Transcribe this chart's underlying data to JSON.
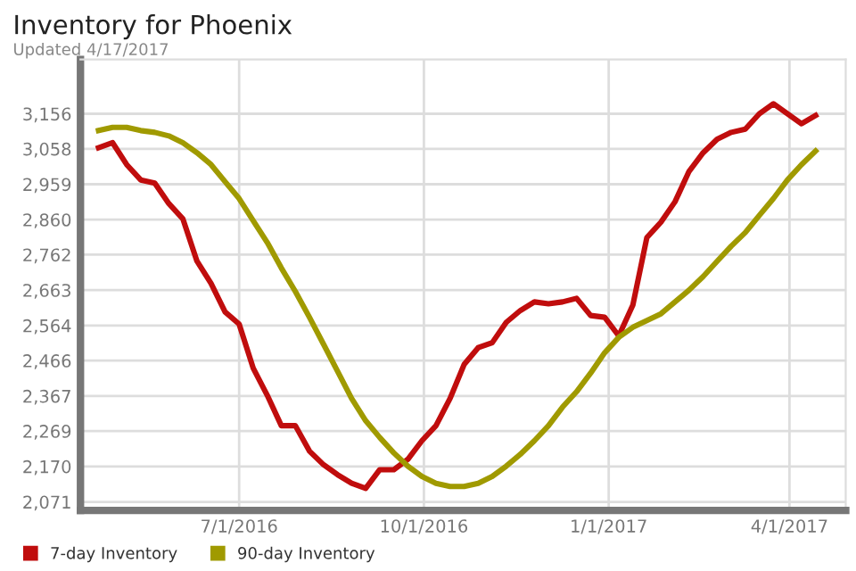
{
  "chart_data": {
    "type": "line",
    "title": "Inventory for Phoenix",
    "subtitle": "Updated 4/17/2017",
    "x": [
      "2016-04-22",
      "2016-04-29",
      "2016-05-06",
      "2016-05-13",
      "2016-05-20",
      "2016-05-27",
      "2016-06-03",
      "2016-06-10",
      "2016-06-17",
      "2016-06-24",
      "2016-07-01",
      "2016-07-08",
      "2016-07-15",
      "2016-07-22",
      "2016-07-29",
      "2016-08-05",
      "2016-08-12",
      "2016-08-19",
      "2016-08-26",
      "2016-09-02",
      "2016-09-09",
      "2016-09-16",
      "2016-09-23",
      "2016-09-30",
      "2016-10-07",
      "2016-10-14",
      "2016-10-21",
      "2016-10-28",
      "2016-11-04",
      "2016-11-11",
      "2016-11-18",
      "2016-11-25",
      "2016-12-02",
      "2016-12-09",
      "2016-12-16",
      "2016-12-23",
      "2016-12-30",
      "2017-01-06",
      "2017-01-13",
      "2017-01-20",
      "2017-01-27",
      "2017-02-03",
      "2017-02-10",
      "2017-02-17",
      "2017-02-24",
      "2017-03-03",
      "2017-03-10",
      "2017-03-17",
      "2017-03-24",
      "2017-03-31",
      "2017-04-07",
      "2017-04-14"
    ],
    "series": [
      {
        "name": "7-day Inventory",
        "color": "#c00d0d",
        "values": [
          3061,
          3075,
          3014,
          2971,
          2962,
          2905,
          2862,
          2744,
          2682,
          2602,
          2568,
          2445,
          2369,
          2284,
          2284,
          2213,
          2175,
          2147,
          2123,
          2109,
          2161,
          2161,
          2190,
          2242,
          2284,
          2360,
          2455,
          2502,
          2516,
          2573,
          2606,
          2630,
          2625,
          2630,
          2640,
          2592,
          2587,
          2535,
          2621,
          2810,
          2853,
          2910,
          2995,
          3047,
          3085,
          3104,
          3113,
          3156,
          3184,
          3156,
          3128,
          3151
        ]
      },
      {
        "name": "90-day Inventory",
        "color": "#a09a00",
        "values": [
          3109,
          3118,
          3118,
          3109,
          3104,
          3094,
          3075,
          3047,
          3014,
          2966,
          2919,
          2857,
          2796,
          2725,
          2659,
          2587,
          2512,
          2436,
          2360,
          2298,
          2251,
          2208,
          2171,
          2142,
          2123,
          2114,
          2114,
          2123,
          2142,
          2171,
          2204,
          2242,
          2284,
          2336,
          2379,
          2431,
          2488,
          2531,
          2559,
          2578,
          2597,
          2630,
          2663,
          2701,
          2744,
          2786,
          2824,
          2872,
          2919,
          2971,
          3014,
          3052
        ]
      }
    ],
    "xlim": [
      "2016-04-13",
      "2017-04-29"
    ],
    "xticks": [
      {
        "value": "2016-07-01",
        "label": "7/1/2016"
      },
      {
        "value": "2016-10-01",
        "label": "10/1/2016"
      },
      {
        "value": "2017-01-01",
        "label": "1/1/2017"
      },
      {
        "value": "2017-04-01",
        "label": "4/1/2017"
      }
    ],
    "ylim": [
      2047,
      3308
    ],
    "yticks": [
      {
        "value": 2071,
        "label": "2,071"
      },
      {
        "value": 2170,
        "label": "2,170"
      },
      {
        "value": 2269,
        "label": "2,269"
      },
      {
        "value": 2367,
        "label": "2,367"
      },
      {
        "value": 2466,
        "label": "2,466"
      },
      {
        "value": 2564,
        "label": "2,564"
      },
      {
        "value": 2663,
        "label": "2,663"
      },
      {
        "value": 2762,
        "label": "2,762"
      },
      {
        "value": 2860,
        "label": "2,860"
      },
      {
        "value": 2959,
        "label": "2,959"
      },
      {
        "value": 3058,
        "label": "3,058"
      },
      {
        "value": 3156,
        "label": "3,156"
      }
    ],
    "grid": true,
    "legend": "bottom left",
    "marker": "none",
    "line_style": "solid"
  }
}
